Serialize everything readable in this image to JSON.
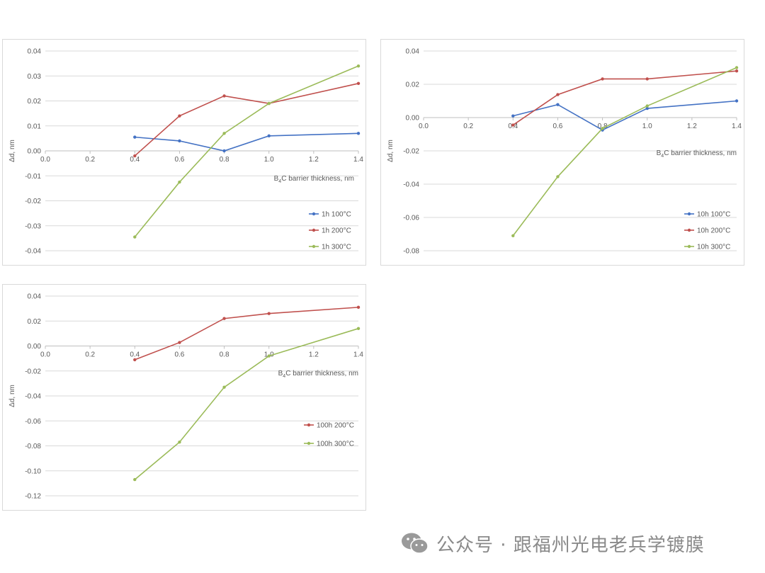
{
  "chart_data": [
    {
      "type": "line",
      "title": "",
      "xlabel": "B4C barrier thickness, nm",
      "ylabel": "Δd,  nm",
      "xlim": [
        0.0,
        1.4
      ],
      "ylim": [
        -0.04,
        0.04
      ],
      "xticks": [
        "0.0",
        "0.2",
        "0.4",
        "0.6",
        "0.8",
        "1.0",
        "1.2",
        "1.4"
      ],
      "yticks": [
        "0.04",
        "0.03",
        "0.02",
        "0.01",
        "0.00",
        "-0.01",
        "-0.02",
        "-0.03",
        "-0.04"
      ],
      "grid": true,
      "legend_position": "bottom-right",
      "series": [
        {
          "name": "1h 100°C",
          "color": "#4472c4",
          "x": [
            0.4,
            0.6,
            0.8,
            1.0,
            1.4
          ],
          "y": [
            0.0055,
            0.004,
            0.0,
            0.006,
            0.007
          ]
        },
        {
          "name": "1h 200°C",
          "color": "#c0504d",
          "x": [
            0.4,
            0.6,
            0.8,
            1.0,
            1.4
          ],
          "y": [
            -0.002,
            0.014,
            0.022,
            0.019,
            0.027
          ]
        },
        {
          "name": "1h 300°C",
          "color": "#9bbb59",
          "x": [
            0.4,
            0.6,
            0.8,
            1.0,
            1.4
          ],
          "y": [
            -0.0345,
            -0.0125,
            0.007,
            0.019,
            0.034
          ]
        }
      ]
    },
    {
      "type": "line",
      "title": "",
      "xlabel": "B4C barrier thickness, nm",
      "ylabel": "Δd,  nm",
      "xlim": [
        0.0,
        1.4
      ],
      "ylim": [
        -0.08,
        0.04
      ],
      "xticks": [
        "0.0",
        "0.2",
        "0.4",
        "0.6",
        "0.8",
        "1.0",
        "1.2",
        "1.4"
      ],
      "yticks": [
        "0.04",
        "0.02",
        "0.00",
        "-0.02",
        "-0.04",
        "-0.06",
        "-0.08"
      ],
      "grid": true,
      "legend_position": "bottom-right",
      "series": [
        {
          "name": "10h 100°C",
          "color": "#4472c4",
          "x": [
            0.4,
            0.6,
            0.8,
            1.0,
            1.4
          ],
          "y": [
            0.001,
            0.0078,
            -0.0075,
            0.0055,
            0.01
          ]
        },
        {
          "name": "10h 200°C",
          "color": "#c0504d",
          "x": [
            0.4,
            0.6,
            0.8,
            1.0,
            1.4
          ],
          "y": [
            -0.0045,
            0.0138,
            0.0232,
            0.0232,
            0.028
          ]
        },
        {
          "name": "10h 300°C",
          "color": "#9bbb59",
          "x": [
            0.4,
            0.6,
            0.8,
            1.0,
            1.4
          ],
          "y": [
            -0.071,
            -0.0355,
            -0.0065,
            0.007,
            0.03
          ]
        }
      ]
    },
    {
      "type": "line",
      "title": "",
      "xlabel": "B4C barrier thickness, nm",
      "ylabel": "Δd,  nm",
      "xlim": [
        0.0,
        1.4
      ],
      "ylim": [
        -0.12,
        0.04
      ],
      "xticks": [
        "0.0",
        "0.2",
        "0.4",
        "0.6",
        "0.8",
        "1.0",
        "1.2",
        "1.4"
      ],
      "yticks": [
        "0.04",
        "0.02",
        "0.00",
        "-0.02",
        "-0.04",
        "-0.06",
        "-0.08",
        "-0.10",
        "-0.12"
      ],
      "grid": true,
      "legend_position": "right",
      "series": [
        {
          "name": "100h 200°C",
          "color": "#c0504d",
          "x": [
            0.4,
            0.6,
            0.8,
            1.0,
            1.4
          ],
          "y": [
            -0.011,
            0.0028,
            0.022,
            0.026,
            0.031
          ]
        },
        {
          "name": "100h 300°C",
          "color": "#9bbb59",
          "x": [
            0.4,
            0.6,
            0.8,
            1.0,
            1.4
          ],
          "y": [
            -0.107,
            -0.077,
            -0.033,
            -0.008,
            0.014
          ]
        }
      ]
    }
  ],
  "watermark": {
    "text": "公众号 · 跟福州光电老兵学镀膜",
    "icon": "wechat-icon"
  }
}
